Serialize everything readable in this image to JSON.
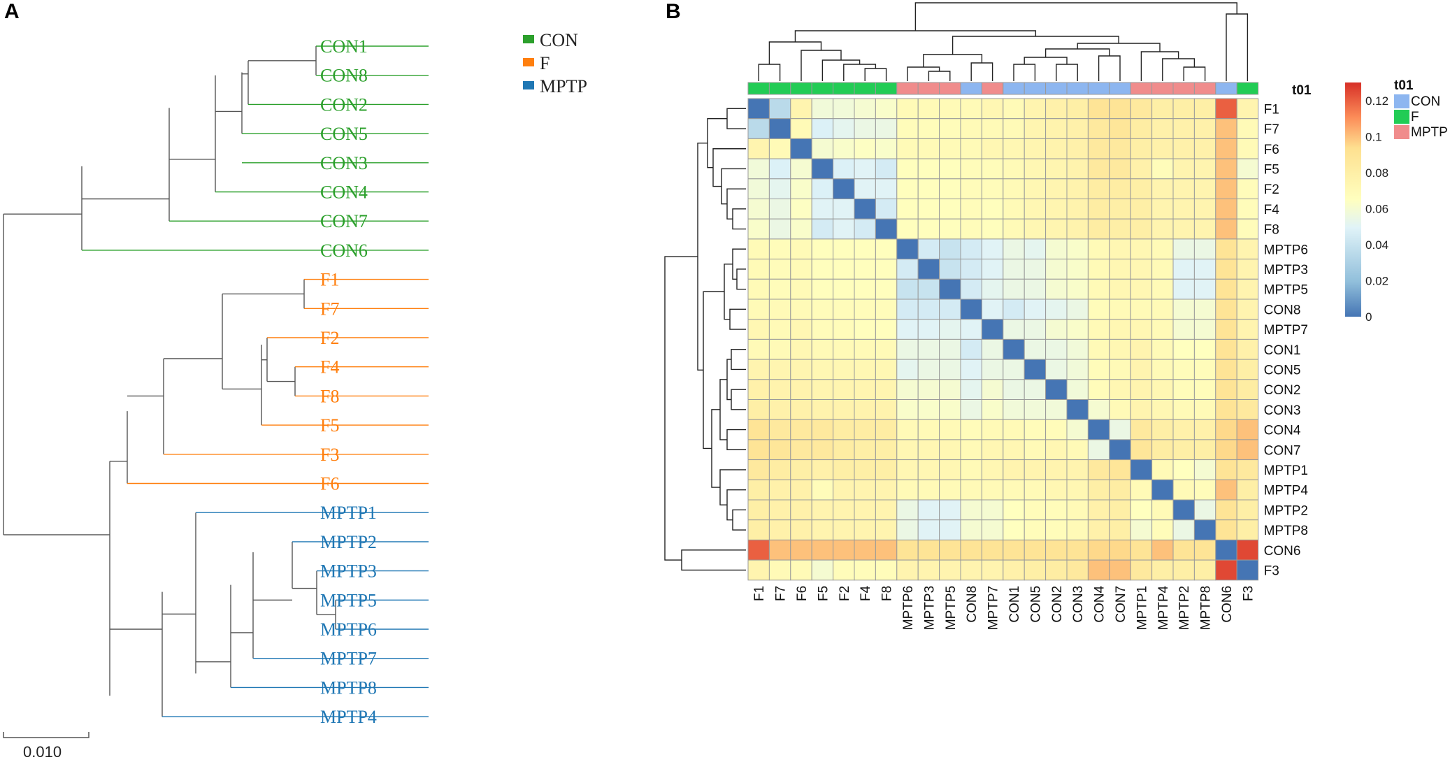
{
  "panel_a": {
    "label": "A",
    "tips": [
      "CON1",
      "CON8",
      "CON2",
      "CON5",
      "CON3",
      "CON4",
      "CON7",
      "CON6",
      "F1",
      "F7",
      "F2",
      "F4",
      "F8",
      "F5",
      "F3",
      "F6",
      "MPTP1",
      "MPTP2",
      "MPTP3",
      "MPTP5",
      "MPTP6",
      "MPTP7",
      "MPTP8",
      "MPTP4"
    ],
    "groups": [
      "CON",
      "CON",
      "CON",
      "CON",
      "CON",
      "CON",
      "CON",
      "CON",
      "F",
      "F",
      "F",
      "F",
      "F",
      "F",
      "F",
      "F",
      "MPTP",
      "MPTP",
      "MPTP",
      "MPTP",
      "MPTP",
      "MPTP",
      "MPTP",
      "MPTP"
    ],
    "legend": [
      {
        "label": "CON",
        "color": "#2ca02c"
      },
      {
        "label": "F",
        "color": "#ff7f0e"
      },
      {
        "label": "MPTP",
        "color": "#1f77b4"
      }
    ],
    "scale_bar": "0.010",
    "branch_color": "#555555"
  },
  "panel_b": {
    "label": "B",
    "annotation_title": "t01",
    "annotation_legend": [
      {
        "label": "CON",
        "color": "#8DB6F0"
      },
      {
        "label": "F",
        "color": "#22CC55"
      },
      {
        "label": "MPTP",
        "color": "#F08C8C"
      }
    ],
    "colorbar_ticks": [
      "0.12",
      "0.1",
      "0.08",
      "0.06",
      "0.04",
      "0.02",
      "0"
    ],
    "colorbar_max": 0.13
  },
  "chart_data": [
    {
      "type": "dendrogram",
      "title": "A",
      "tips": [
        "CON1",
        "CON8",
        "CON2",
        "CON5",
        "CON3",
        "CON4",
        "CON7",
        "CON6",
        "F1",
        "F7",
        "F2",
        "F4",
        "F8",
        "F5",
        "F3",
        "F6",
        "MPTP1",
        "MPTP2",
        "MPTP3",
        "MPTP5",
        "MPTP6",
        "MPTP7",
        "MPTP8",
        "MPTP4"
      ],
      "scale": 0.01
    },
    {
      "type": "heatmap",
      "title": "B",
      "columns": [
        "F1",
        "F7",
        "F6",
        "F5",
        "F2",
        "F4",
        "F8",
        "MPTP6",
        "MPTP3",
        "MPTP5",
        "CON8",
        "MPTP7",
        "CON1",
        "CON5",
        "CON2",
        "CON3",
        "CON4",
        "CON7",
        "MPTP1",
        "MPTP4",
        "MPTP2",
        "MPTP8",
        "CON6",
        "F3"
      ],
      "rows": [
        "F1",
        "F7",
        "F6",
        "F5",
        "F2",
        "F4",
        "F8",
        "MPTP6",
        "MPTP3",
        "MPTP5",
        "CON8",
        "MPTP7",
        "CON1",
        "CON5",
        "CON2",
        "CON3",
        "CON4",
        "CON7",
        "MPTP1",
        "MPTP4",
        "MPTP2",
        "MPTP8",
        "CON6",
        "F3"
      ],
      "groups": [
        "F",
        "F",
        "F",
        "F",
        "F",
        "F",
        "F",
        "MPTP",
        "MPTP",
        "MPTP",
        "CON",
        "MPTP",
        "CON",
        "CON",
        "CON",
        "CON",
        "CON",
        "CON",
        "MPTP",
        "MPTP",
        "MPTP",
        "MPTP",
        "CON",
        "F"
      ],
      "color_range": [
        0,
        0.13
      ],
      "values": [
        [
          0,
          0.035,
          0.075,
          0.058,
          0.058,
          0.06,
          0.062,
          0.07,
          0.07,
          0.07,
          0.07,
          0.072,
          0.07,
          0.075,
          0.078,
          0.08,
          0.09,
          0.09,
          0.085,
          0.08,
          0.08,
          0.08,
          0.12,
          0.075
        ],
        [
          0.035,
          0,
          0.07,
          0.048,
          0.052,
          0.055,
          0.055,
          0.068,
          0.068,
          0.068,
          0.07,
          0.07,
          0.07,
          0.074,
          0.076,
          0.078,
          0.085,
          0.088,
          0.082,
          0.078,
          0.078,
          0.078,
          0.1,
          0.07
        ],
        [
          0.075,
          0.07,
          0,
          0.06,
          0.062,
          0.064,
          0.062,
          0.07,
          0.07,
          0.07,
          0.07,
          0.072,
          0.072,
          0.074,
          0.076,
          0.078,
          0.085,
          0.085,
          0.08,
          0.078,
          0.078,
          0.078,
          0.1,
          0.07
        ],
        [
          0.058,
          0.048,
          0.06,
          0,
          0.048,
          0.05,
          0.045,
          0.066,
          0.066,
          0.066,
          0.068,
          0.068,
          0.07,
          0.072,
          0.074,
          0.076,
          0.085,
          0.085,
          0.078,
          0.068,
          0.075,
          0.075,
          0.1,
          0.06
        ],
        [
          0.058,
          0.052,
          0.062,
          0.048,
          0,
          0.05,
          0.05,
          0.066,
          0.066,
          0.066,
          0.068,
          0.068,
          0.07,
          0.072,
          0.074,
          0.076,
          0.082,
          0.082,
          0.08,
          0.075,
          0.075,
          0.075,
          0.1,
          0.068
        ],
        [
          0.06,
          0.055,
          0.064,
          0.05,
          0.05,
          0,
          0.045,
          0.066,
          0.066,
          0.066,
          0.068,
          0.066,
          0.07,
          0.072,
          0.074,
          0.076,
          0.082,
          0.08,
          0.08,
          0.075,
          0.075,
          0.075,
          0.1,
          0.068
        ],
        [
          0.062,
          0.055,
          0.062,
          0.045,
          0.05,
          0.045,
          0,
          0.066,
          0.066,
          0.066,
          0.068,
          0.066,
          0.07,
          0.072,
          0.074,
          0.076,
          0.082,
          0.08,
          0.08,
          0.075,
          0.075,
          0.075,
          0.1,
          0.068
        ],
        [
          0.07,
          0.068,
          0.07,
          0.066,
          0.066,
          0.066,
          0.066,
          0,
          0.045,
          0.04,
          0.045,
          0.05,
          0.055,
          0.052,
          0.06,
          0.062,
          0.07,
          0.072,
          0.072,
          0.07,
          0.055,
          0.055,
          0.09,
          0.075
        ],
        [
          0.07,
          0.068,
          0.07,
          0.066,
          0.066,
          0.066,
          0.066,
          0.045,
          0,
          0.04,
          0.045,
          0.05,
          0.055,
          0.055,
          0.06,
          0.062,
          0.07,
          0.072,
          0.072,
          0.07,
          0.05,
          0.05,
          0.09,
          0.075
        ],
        [
          0.07,
          0.068,
          0.07,
          0.066,
          0.066,
          0.066,
          0.066,
          0.04,
          0.04,
          0,
          0.045,
          0.052,
          0.055,
          0.055,
          0.06,
          0.062,
          0.07,
          0.072,
          0.072,
          0.07,
          0.05,
          0.05,
          0.09,
          0.075
        ],
        [
          0.07,
          0.07,
          0.07,
          0.068,
          0.068,
          0.068,
          0.068,
          0.045,
          0.045,
          0.045,
          0,
          0.05,
          0.045,
          0.05,
          0.052,
          0.055,
          0.068,
          0.07,
          0.07,
          0.07,
          0.06,
          0.06,
          0.09,
          0.075
        ],
        [
          0.072,
          0.07,
          0.072,
          0.068,
          0.068,
          0.066,
          0.066,
          0.05,
          0.05,
          0.052,
          0.05,
          0,
          0.055,
          0.055,
          0.06,
          0.062,
          0.07,
          0.072,
          0.072,
          0.07,
          0.06,
          0.06,
          0.09,
          0.075
        ],
        [
          0.07,
          0.07,
          0.072,
          0.07,
          0.07,
          0.07,
          0.07,
          0.055,
          0.055,
          0.055,
          0.045,
          0.055,
          0,
          0.055,
          0.055,
          0.058,
          0.07,
          0.072,
          0.075,
          0.07,
          0.065,
          0.065,
          0.09,
          0.078
        ],
        [
          0.075,
          0.074,
          0.074,
          0.072,
          0.072,
          0.072,
          0.072,
          0.052,
          0.055,
          0.055,
          0.05,
          0.055,
          0.055,
          0,
          0.055,
          0.058,
          0.068,
          0.07,
          0.075,
          0.07,
          0.068,
          0.068,
          0.09,
          0.08
        ],
        [
          0.078,
          0.076,
          0.076,
          0.074,
          0.074,
          0.074,
          0.074,
          0.06,
          0.06,
          0.06,
          0.052,
          0.06,
          0.055,
          0.055,
          0,
          0.058,
          0.068,
          0.072,
          0.075,
          0.072,
          0.068,
          0.068,
          0.09,
          0.082
        ],
        [
          0.08,
          0.078,
          0.078,
          0.076,
          0.076,
          0.076,
          0.076,
          0.062,
          0.062,
          0.062,
          0.055,
          0.062,
          0.058,
          0.058,
          0.058,
          0,
          0.06,
          0.07,
          0.075,
          0.072,
          0.07,
          0.07,
          0.09,
          0.085
        ],
        [
          0.09,
          0.085,
          0.085,
          0.085,
          0.082,
          0.082,
          0.082,
          0.07,
          0.07,
          0.07,
          0.068,
          0.07,
          0.07,
          0.068,
          0.068,
          0.06,
          0,
          0.055,
          0.085,
          0.08,
          0.078,
          0.078,
          0.095,
          0.1
        ],
        [
          0.09,
          0.088,
          0.085,
          0.085,
          0.082,
          0.08,
          0.08,
          0.072,
          0.072,
          0.072,
          0.07,
          0.072,
          0.072,
          0.07,
          0.072,
          0.07,
          0.055,
          0,
          0.088,
          0.082,
          0.08,
          0.08,
          0.095,
          0.1
        ],
        [
          0.085,
          0.082,
          0.08,
          0.078,
          0.08,
          0.08,
          0.08,
          0.072,
          0.072,
          0.072,
          0.07,
          0.072,
          0.075,
          0.075,
          0.075,
          0.075,
          0.085,
          0.088,
          0,
          0.07,
          0.065,
          0.06,
          0.09,
          0.085
        ],
        [
          0.08,
          0.078,
          0.078,
          0.068,
          0.075,
          0.075,
          0.075,
          0.07,
          0.07,
          0.07,
          0.07,
          0.07,
          0.07,
          0.07,
          0.072,
          0.072,
          0.08,
          0.082,
          0.07,
          0,
          0.07,
          0.068,
          0.1,
          0.08
        ],
        [
          0.08,
          0.078,
          0.078,
          0.075,
          0.075,
          0.075,
          0.075,
          0.055,
          0.05,
          0.05,
          0.06,
          0.06,
          0.065,
          0.068,
          0.068,
          0.07,
          0.078,
          0.08,
          0.065,
          0.07,
          0,
          0.055,
          0.09,
          0.08
        ],
        [
          0.08,
          0.078,
          0.078,
          0.075,
          0.075,
          0.075,
          0.075,
          0.055,
          0.05,
          0.05,
          0.06,
          0.06,
          0.065,
          0.068,
          0.068,
          0.07,
          0.078,
          0.08,
          0.06,
          0.068,
          0.055,
          0,
          0.09,
          0.08
        ],
        [
          0.12,
          0.1,
          0.1,
          0.1,
          0.1,
          0.1,
          0.1,
          0.09,
          0.09,
          0.09,
          0.09,
          0.09,
          0.09,
          0.09,
          0.09,
          0.09,
          0.095,
          0.095,
          0.09,
          0.1,
          0.09,
          0.09,
          0,
          0.125
        ],
        [
          0.075,
          0.07,
          0.07,
          0.06,
          0.068,
          0.068,
          0.068,
          0.075,
          0.075,
          0.075,
          0.075,
          0.075,
          0.078,
          0.08,
          0.082,
          0.085,
          0.1,
          0.1,
          0.085,
          0.08,
          0.08,
          0.08,
          0.125,
          0
        ]
      ]
    }
  ]
}
